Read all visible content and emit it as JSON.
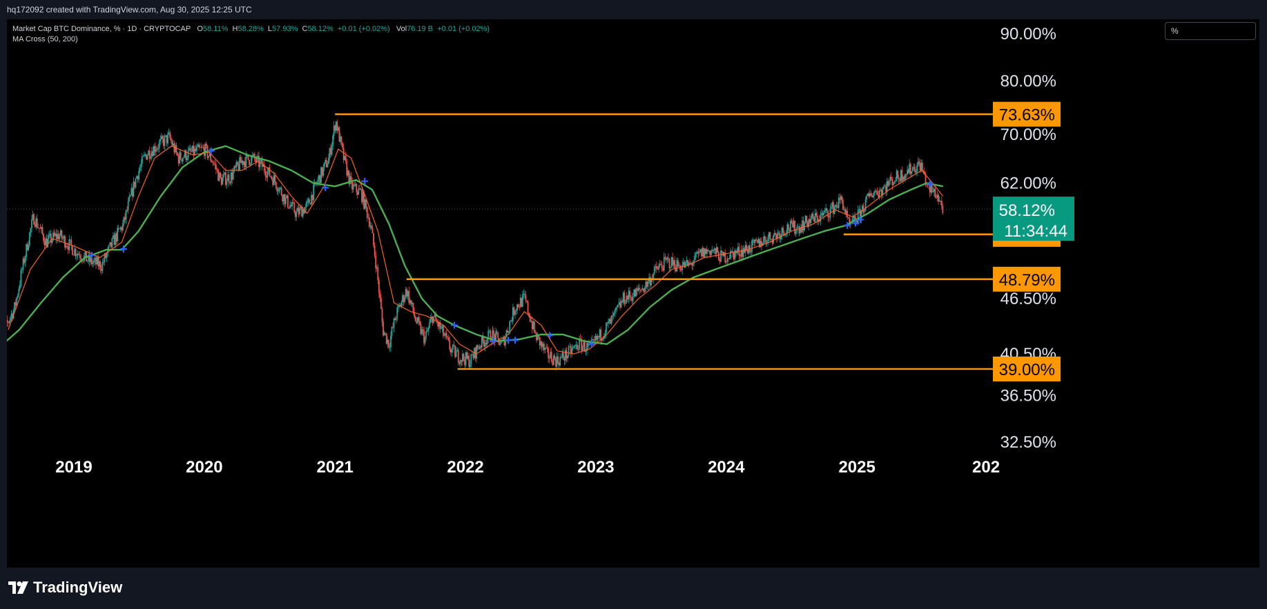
{
  "credit": "hq172092 created with TradingView.com, Aug 30, 2025 12:25 UTC",
  "legend": {
    "symbol": "Market Cap BTC Dominance, % · 1D · CRYPTOCAP",
    "o_label": "O",
    "o_value": "58.11%",
    "h_label": "H",
    "h_value": "58.28%",
    "l_label": "L",
    "l_value": "57.93%",
    "c_label": "C",
    "c_value": "58.12%",
    "change": "+0.01 (+0.02%)",
    "vol_label": "Vol",
    "vol_value": "76.19 B",
    "vol_change": "+0.01 (+0.02%)",
    "indicator": "MA Cross (50, 200)"
  },
  "scale_button": "%",
  "brand": {
    "name": "TradingView",
    "logo_icon": "tradingview-logo-icon"
  },
  "colors": {
    "up": "#26a69a",
    "down": "#ef5350",
    "ma_fast": "#f7632b",
    "ma_slow": "#4caf50",
    "level": "#ff9800",
    "cross": "#2962ff"
  },
  "chart_data": {
    "type": "candlestick",
    "symbol": "CRYPTOCAP:BTC.D",
    "scale": "log",
    "x_range": [
      "2018-06-01",
      "2026-01-01"
    ],
    "y_range": [
      30.5,
      92
    ],
    "y_ticks": [
      "90.00%",
      "80.00%",
      "70.00%",
      "62.00%",
      "46.50%",
      "40.50%",
      "36.50%",
      "32.50%"
    ],
    "y_tick_values": [
      90,
      80,
      70,
      62,
      46.5,
      40.5,
      36.5,
      32.5
    ],
    "x_ticks": [
      "2019",
      "2020",
      "2021",
      "2022",
      "2023",
      "2024",
      "2025",
      "202"
    ],
    "x_tick_dates": [
      "2019-01-01",
      "2020-01-01",
      "2021-01-01",
      "2022-01-01",
      "2023-01-01",
      "2024-01-01",
      "2025-01-01",
      "2026-01-01"
    ],
    "last_price": {
      "label": "58.12%",
      "value": 58.12,
      "countdown": "11:34:44"
    },
    "levels": [
      {
        "label": "73.63%",
        "value": 73.63,
        "from": "2021-01-01"
      },
      {
        "label": "54.56%",
        "value": 54.56,
        "from": "2024-11-25"
      },
      {
        "label": "48.79%",
        "value": 48.79,
        "from": "2021-07-20"
      },
      {
        "label": "39.00%",
        "value": 39.0,
        "from": "2021-12-10"
      }
    ],
    "price_path": [
      [
        "2018-06-01",
        41.5
      ],
      [
        "2018-07-20",
        45.5
      ],
      [
        "2018-09-10",
        57.0
      ],
      [
        "2018-10-15",
        53.5
      ],
      [
        "2018-11-20",
        54.5
      ],
      [
        "2019-01-01",
        52.5
      ],
      [
        "2019-02-15",
        51.0
      ],
      [
        "2019-03-20",
        50.5
      ],
      [
        "2019-04-20",
        53.5
      ],
      [
        "2019-05-20",
        56.0
      ],
      [
        "2019-06-25",
        63.0
      ],
      [
        "2019-07-20",
        66.5
      ],
      [
        "2019-08-20",
        68.0
      ],
      [
        "2019-09-25",
        69.5
      ],
      [
        "2019-10-20",
        66.0
      ],
      [
        "2019-11-20",
        66.8
      ],
      [
        "2020-01-01",
        67.5
      ],
      [
        "2020-01-25",
        65.5
      ],
      [
        "2020-02-15",
        62.5
      ],
      [
        "2020-03-15",
        63.0
      ],
      [
        "2020-04-15",
        65.5
      ],
      [
        "2020-05-15",
        66.0
      ],
      [
        "2020-06-15",
        64.5
      ],
      [
        "2020-07-15",
        62.5
      ],
      [
        "2020-08-15",
        59.5
      ],
      [
        "2020-09-15",
        57.5
      ],
      [
        "2020-10-15",
        58.5
      ],
      [
        "2020-11-15",
        62.5
      ],
      [
        "2020-12-15",
        66.0
      ],
      [
        "2021-01-03",
        72.5
      ],
      [
        "2021-01-25",
        66.0
      ],
      [
        "2021-02-15",
        61.5
      ],
      [
        "2021-03-15",
        60.5
      ],
      [
        "2021-04-10",
        56.0
      ],
      [
        "2021-04-25",
        51.0
      ],
      [
        "2021-05-15",
        43.0
      ],
      [
        "2021-06-01",
        41.5
      ],
      [
        "2021-06-20",
        44.5
      ],
      [
        "2021-07-20",
        47.5
      ],
      [
        "2021-08-15",
        44.0
      ],
      [
        "2021-09-10",
        42.0
      ],
      [
        "2021-10-01",
        44.5
      ],
      [
        "2021-10-25",
        43.0
      ],
      [
        "2021-11-20",
        41.0
      ],
      [
        "2021-12-15",
        40.2
      ],
      [
        "2022-01-15",
        39.8
      ],
      [
        "2022-02-10",
        41.5
      ],
      [
        "2022-03-15",
        42.5
      ],
      [
        "2022-04-15",
        41.5
      ],
      [
        "2022-05-20",
        45.5
      ],
      [
        "2022-06-15",
        46.5
      ],
      [
        "2022-07-15",
        42.5
      ],
      [
        "2022-08-15",
        40.5
      ],
      [
        "2022-09-15",
        39.8
      ],
      [
        "2022-10-15",
        40.5
      ],
      [
        "2022-11-15",
        41.5
      ],
      [
        "2022-12-15",
        41.0
      ],
      [
        "2023-01-15",
        42.5
      ],
      [
        "2023-02-15",
        44.0
      ],
      [
        "2023-03-20",
        46.5
      ],
      [
        "2023-04-20",
        47.0
      ],
      [
        "2023-05-20",
        48.0
      ],
      [
        "2023-06-20",
        50.0
      ],
      [
        "2023-07-20",
        51.0
      ],
      [
        "2023-08-20",
        50.5
      ],
      [
        "2023-09-20",
        50.5
      ],
      [
        "2023-10-20",
        52.0
      ],
      [
        "2023-11-20",
        52.5
      ],
      [
        "2023-12-20",
        51.5
      ],
      [
        "2024-01-20",
        52.0
      ],
      [
        "2024-02-20",
        52.5
      ],
      [
        "2024-03-20",
        53.0
      ],
      [
        "2024-04-20",
        54.0
      ],
      [
        "2024-05-20",
        54.5
      ],
      [
        "2024-06-20",
        55.5
      ],
      [
        "2024-07-20",
        55.5
      ],
      [
        "2024-08-20",
        56.5
      ],
      [
        "2024-09-20",
        57.0
      ],
      [
        "2024-10-20",
        58.0
      ],
      [
        "2024-11-20",
        59.5
      ],
      [
        "2024-12-10",
        55.5
      ],
      [
        "2025-01-10",
        57.5
      ],
      [
        "2025-02-10",
        60.5
      ],
      [
        "2025-03-10",
        61.0
      ],
      [
        "2025-04-10",
        62.5
      ],
      [
        "2025-05-10",
        63.5
      ],
      [
        "2025-06-10",
        64.5
      ],
      [
        "2025-06-28",
        65.0
      ],
      [
        "2025-07-20",
        61.0
      ],
      [
        "2025-08-10",
        60.5
      ],
      [
        "2025-08-30",
        58.12
      ]
    ],
    "ma_fast_50": [
      [
        "2018-07-01",
        43.0
      ],
      [
        "2018-09-01",
        50.0
      ],
      [
        "2018-11-01",
        54.0
      ],
      [
        "2019-01-01",
        53.0
      ],
      [
        "2019-03-15",
        51.5
      ],
      [
        "2019-05-15",
        53.5
      ],
      [
        "2019-07-01",
        60.0
      ],
      [
        "2019-08-15",
        66.0
      ],
      [
        "2019-10-01",
        68.0
      ],
      [
        "2019-12-01",
        66.5
      ],
      [
        "2020-01-15",
        67.0
      ],
      [
        "2020-03-01",
        64.0
      ],
      [
        "2020-04-15",
        64.0
      ],
      [
        "2020-06-01",
        65.5
      ],
      [
        "2020-07-15",
        63.5
      ],
      [
        "2020-09-01",
        60.0
      ],
      [
        "2020-10-15",
        57.5
      ],
      [
        "2020-12-01",
        61.5
      ],
      [
        "2021-01-10",
        67.5
      ],
      [
        "2021-02-15",
        66.0
      ],
      [
        "2021-03-20",
        61.0
      ],
      [
        "2021-05-01",
        55.0
      ],
      [
        "2021-06-15",
        46.0
      ],
      [
        "2021-08-01",
        45.0
      ],
      [
        "2021-09-15",
        44.5
      ],
      [
        "2021-11-01",
        43.5
      ],
      [
        "2021-12-15",
        41.5
      ],
      [
        "2022-02-01",
        40.5
      ],
      [
        "2022-03-15",
        41.5
      ],
      [
        "2022-05-01",
        42.5
      ],
      [
        "2022-06-15",
        45.0
      ],
      [
        "2022-08-01",
        43.5
      ],
      [
        "2022-09-15",
        40.8
      ],
      [
        "2022-11-01",
        40.5
      ],
      [
        "2022-12-15",
        41.0
      ],
      [
        "2023-02-01",
        42.5
      ],
      [
        "2023-03-15",
        44.5
      ],
      [
        "2023-05-01",
        46.5
      ],
      [
        "2023-06-15",
        48.0
      ],
      [
        "2023-08-01",
        50.0
      ],
      [
        "2023-09-15",
        50.5
      ],
      [
        "2023-11-01",
        51.5
      ],
      [
        "2024-01-01",
        52.0
      ],
      [
        "2024-03-01",
        52.5
      ],
      [
        "2024-05-01",
        53.5
      ],
      [
        "2024-07-01",
        55.0
      ],
      [
        "2024-09-01",
        56.0
      ],
      [
        "2024-11-01",
        58.0
      ],
      [
        "2024-12-20",
        57.0
      ],
      [
        "2025-02-01",
        58.5
      ],
      [
        "2025-04-01",
        61.0
      ],
      [
        "2025-06-01",
        63.0
      ],
      [
        "2025-07-01",
        64.0
      ],
      [
        "2025-08-01",
        62.0
      ],
      [
        "2025-08-30",
        60.0
      ]
    ],
    "ma_slow_200": [
      [
        "2018-06-01",
        41.0
      ],
      [
        "2018-08-01",
        43.0
      ],
      [
        "2018-10-01",
        46.0
      ],
      [
        "2018-12-01",
        49.0
      ],
      [
        "2019-02-01",
        51.5
      ],
      [
        "2019-04-01",
        52.5
      ],
      [
        "2019-05-15",
        52.5
      ],
      [
        "2019-07-01",
        55.0
      ],
      [
        "2019-09-01",
        60.0
      ],
      [
        "2019-11-01",
        64.5
      ],
      [
        "2020-01-01",
        67.0
      ],
      [
        "2020-03-01",
        68.0
      ],
      [
        "2020-05-01",
        66.5
      ],
      [
        "2020-07-01",
        65.5
      ],
      [
        "2020-09-01",
        64.0
      ],
      [
        "2020-11-01",
        62.0
      ],
      [
        "2021-01-01",
        61.5
      ],
      [
        "2021-03-01",
        62.5
      ],
      [
        "2021-04-15",
        61.0
      ],
      [
        "2021-06-01",
        56.0
      ],
      [
        "2021-07-15",
        50.5
      ],
      [
        "2021-09-01",
        46.5
      ],
      [
        "2021-10-15",
        44.5
      ],
      [
        "2021-12-01",
        43.5
      ],
      [
        "2022-02-01",
        42.5
      ],
      [
        "2022-04-01",
        41.8
      ],
      [
        "2022-06-01",
        42.0
      ],
      [
        "2022-08-01",
        42.5
      ],
      [
        "2022-10-01",
        42.5
      ],
      [
        "2022-12-01",
        41.8
      ],
      [
        "2023-02-01",
        41.5
      ],
      [
        "2023-04-01",
        43.0
      ],
      [
        "2023-06-01",
        45.5
      ],
      [
        "2023-08-01",
        47.5
      ],
      [
        "2023-10-01",
        49.0
      ],
      [
        "2023-12-01",
        50.0
      ],
      [
        "2024-02-01",
        51.0
      ],
      [
        "2024-04-01",
        52.0
      ],
      [
        "2024-06-01",
        53.0
      ],
      [
        "2024-08-01",
        54.0
      ],
      [
        "2024-10-01",
        55.0
      ],
      [
        "2024-12-01",
        55.8
      ],
      [
        "2025-02-01",
        57.5
      ],
      [
        "2025-04-01",
        59.5
      ],
      [
        "2025-06-01",
        61.0
      ],
      [
        "2025-07-15",
        62.0
      ],
      [
        "2025-08-30",
        61.5
      ]
    ],
    "crosses": [
      [
        "2018-06-05",
        42.8
      ],
      [
        "2019-02-20",
        51.8
      ],
      [
        "2019-05-20",
        52.6
      ],
      [
        "2020-01-20",
        67.2
      ],
      [
        "2020-12-05",
        61.3
      ],
      [
        "2021-03-25",
        62.3
      ],
      [
        "2021-12-01",
        43.5
      ],
      [
        "2022-03-20",
        41.8
      ],
      [
        "2022-05-01",
        41.9
      ],
      [
        "2022-05-20",
        41.9
      ],
      [
        "2022-08-25",
        42.4
      ],
      [
        "2022-12-20",
        41.5
      ],
      [
        "2024-12-05",
        55.8
      ],
      [
        "2024-12-28",
        56.1
      ],
      [
        "2025-01-10",
        56.6
      ],
      [
        "2025-07-25",
        61.9
      ]
    ]
  }
}
